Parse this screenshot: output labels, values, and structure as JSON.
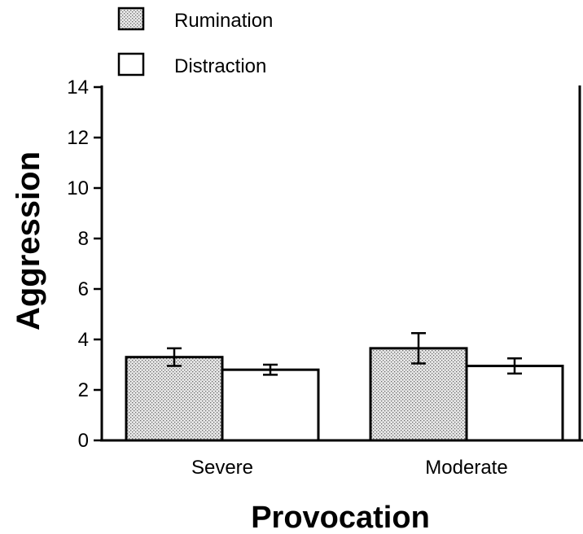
{
  "chart_data": {
    "type": "bar",
    "title": "",
    "xlabel": "Provocation",
    "ylabel": "Aggression",
    "ylim": [
      0,
      14
    ],
    "yticks": [
      0,
      2,
      4,
      6,
      8,
      10,
      12,
      14
    ],
    "categories": [
      "Severe",
      "Moderate"
    ],
    "series": [
      {
        "name": "Rumination",
        "values": [
          3.3,
          3.65
        ],
        "error": [
          0.35,
          0.6
        ],
        "fill": "dotted-gray"
      },
      {
        "name": "Distraction",
        "values": [
          2.8,
          2.95
        ],
        "error": [
          0.2,
          0.3
        ],
        "fill": "white"
      }
    ],
    "legend_position": "top-left",
    "grid": false
  },
  "colors": {
    "axis": "#000000",
    "dotted_fill_bg": "#e8e8e8",
    "dotted_fill_dot": "#6a6a6a",
    "open_fill": "#ffffff"
  }
}
